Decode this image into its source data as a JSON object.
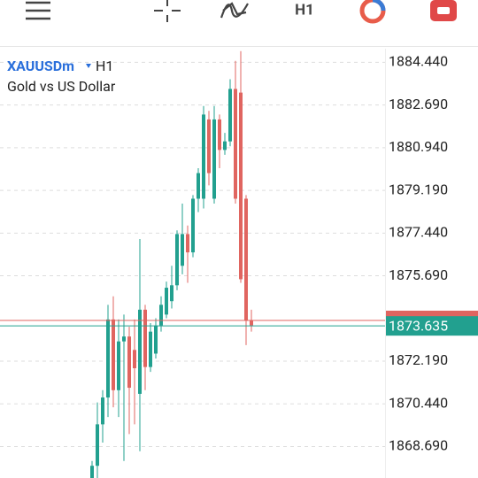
{
  "toolbar": {
    "timeframe": "H1"
  },
  "chart_data": {
    "type": "candlestick",
    "title": "XAUUSDm",
    "timeframe": "H1",
    "subtitle": "Gold vs US Dollar",
    "up_color": "#22a08f",
    "down_color": "#e06560",
    "ylim": [
      1867.4,
      1885.0
    ],
    "yticks": [
      {
        "value": 1884.44,
        "label": "1884.440"
      },
      {
        "value": 1882.69,
        "label": "1882.690"
      },
      {
        "value": 1880.94,
        "label": "1880.940"
      },
      {
        "value": 1879.19,
        "label": "1879.190"
      },
      {
        "value": 1877.44,
        "label": "1877.440"
      },
      {
        "value": 1875.69,
        "label": "1875.690"
      },
      {
        "value": 1872.19,
        "label": "1872.190"
      },
      {
        "value": 1870.44,
        "label": "1870.440"
      },
      {
        "value": 1868.69,
        "label": "1868.690"
      }
    ],
    "grid": true,
    "bid": 1873.635,
    "ask": 1873.86,
    "open": [
      1867.4,
      1867.9,
      1869.6,
      1870.7,
      1873.9,
      1871.0,
      1873.0,
      1873.2,
      1872.65,
      1870.85,
      1874.3,
      1871.95,
      1872.5,
      1873.65,
      1874.1,
      1874.65,
      1875.3,
      1876.1,
      1877.4,
      1876.65,
      1878.85,
      1878.85,
      1882.1,
      1878.85,
      1882.1,
      1880.85,
      1881.2,
      1883.35,
      1883.2,
      1878.85,
      1873.85
    ],
    "high": [
      1868.1,
      1870.5,
      1871.0,
      1874.5,
      1874.85,
      1873.9,
      1874.1,
      1873.6,
      1873.9,
      1877.2,
      1874.5,
      1873.75,
      1873.95,
      1874.85,
      1875.45,
      1876.1,
      1877.55,
      1878.65,
      1877.75,
      1879.0,
      1880.1,
      1882.65,
      1882.45,
      1882.65,
      1882.3,
      1881.55,
      1883.75,
      1884.5,
      1884.9,
      1879.0,
      1874.3
    ],
    "low": [
      1867.4,
      1867.4,
      1868.85,
      1869.9,
      1870.3,
      1869.9,
      1868.1,
      1869.2,
      1869.6,
      1868.5,
      1871.0,
      1871.75,
      1872.3,
      1873.4,
      1873.95,
      1874.35,
      1875.1,
      1875.75,
      1875.4,
      1876.45,
      1878.3,
      1878.45,
      1879.4,
      1878.65,
      1880.1,
      1880.65,
      1881.0,
      1878.65,
      1875.4,
      1872.85,
      1873.4
    ],
    "close": [
      1867.9,
      1869.6,
      1870.7,
      1873.9,
      1871.0,
      1873.0,
      1873.2,
      1871.1,
      1871.9,
      1874.3,
      1871.95,
      1873.4,
      1873.65,
      1874.5,
      1875.2,
      1875.3,
      1877.4,
      1877.4,
      1876.65,
      1878.85,
      1879.9,
      1882.3,
      1879.9,
      1882.1,
      1880.85,
      1881.2,
      1883.35,
      1878.85,
      1875.55,
      1873.85,
      1873.65
    ]
  }
}
